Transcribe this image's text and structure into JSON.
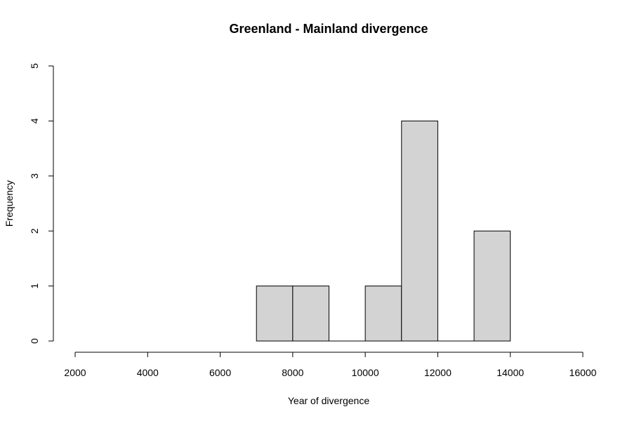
{
  "chart_data": {
    "type": "bar",
    "title": "Greenland - Mainland divergence",
    "xlabel": "Year of divergence",
    "ylabel": "Frequency",
    "xlim": [
      2000,
      16000
    ],
    "ylim": [
      0,
      5
    ],
    "xticks": [
      2000,
      4000,
      6000,
      8000,
      10000,
      12000,
      14000,
      16000
    ],
    "yticks": [
      0,
      1,
      2,
      3,
      4,
      5
    ],
    "bins": [
      {
        "start": 7000,
        "end": 8000,
        "count": 1
      },
      {
        "start": 8000,
        "end": 9000,
        "count": 1
      },
      {
        "start": 9000,
        "end": 10000,
        "count": 0
      },
      {
        "start": 10000,
        "end": 11000,
        "count": 1
      },
      {
        "start": 11000,
        "end": 12000,
        "count": 4
      },
      {
        "start": 12000,
        "end": 13000,
        "count": 0
      },
      {
        "start": 13000,
        "end": 14000,
        "count": 2
      }
    ],
    "bar_color": "#d3d3d3",
    "grid": false,
    "legend": "none"
  }
}
